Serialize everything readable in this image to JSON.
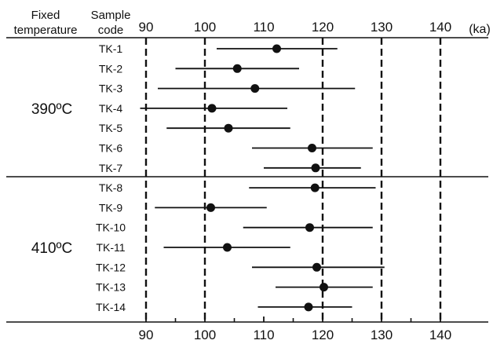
{
  "chart_data": {
    "type": "scatter",
    "header": {
      "col1": [
        "Fixed",
        "temperature"
      ],
      "col2": [
        "Sample",
        "code"
      ],
      "unit": "(ka)"
    },
    "xlim": [
      87,
      149
    ],
    "major_ticks": [
      90,
      100,
      110,
      120,
      130,
      140
    ],
    "minor_ticks": [
      95,
      105,
      115,
      125,
      135
    ],
    "dashed_lines": [
      90,
      100,
      120,
      130,
      140
    ],
    "groups": [
      {
        "label": "390ºC",
        "samples": [
          {
            "code": "TK-1",
            "value": 112.2,
            "low": 102.0,
            "high": 122.5
          },
          {
            "code": "TK-2",
            "value": 105.5,
            "low": 95.0,
            "high": 116.0
          },
          {
            "code": "TK-3",
            "value": 108.5,
            "low": 92.0,
            "high": 125.5
          },
          {
            "code": "TK-4",
            "value": 101.2,
            "low": 89.0,
            "high": 114.0
          },
          {
            "code": "TK-5",
            "value": 104.0,
            "low": 93.5,
            "high": 114.5
          },
          {
            "code": "TK-6",
            "value": 118.2,
            "low": 108.0,
            "high": 128.5
          },
          {
            "code": "TK-7",
            "value": 118.8,
            "low": 110.0,
            "high": 126.5
          }
        ]
      },
      {
        "label": "410ºC",
        "samples": [
          {
            "code": "TK-8",
            "value": 118.7,
            "low": 107.5,
            "high": 129.0
          },
          {
            "code": "TK-9",
            "value": 101.0,
            "low": 91.5,
            "high": 110.5
          },
          {
            "code": "TK-10",
            "value": 117.8,
            "low": 106.5,
            "high": 128.5
          },
          {
            "code": "TK-11",
            "value": 103.8,
            "low": 93.0,
            "high": 114.5
          },
          {
            "code": "TK-12",
            "value": 119.0,
            "low": 108.0,
            "high": 130.5
          },
          {
            "code": "TK-13",
            "value": 120.2,
            "low": 112.0,
            "high": 128.5
          },
          {
            "code": "TK-14",
            "value": 117.6,
            "low": 109.0,
            "high": 125.0
          }
        ]
      }
    ]
  }
}
